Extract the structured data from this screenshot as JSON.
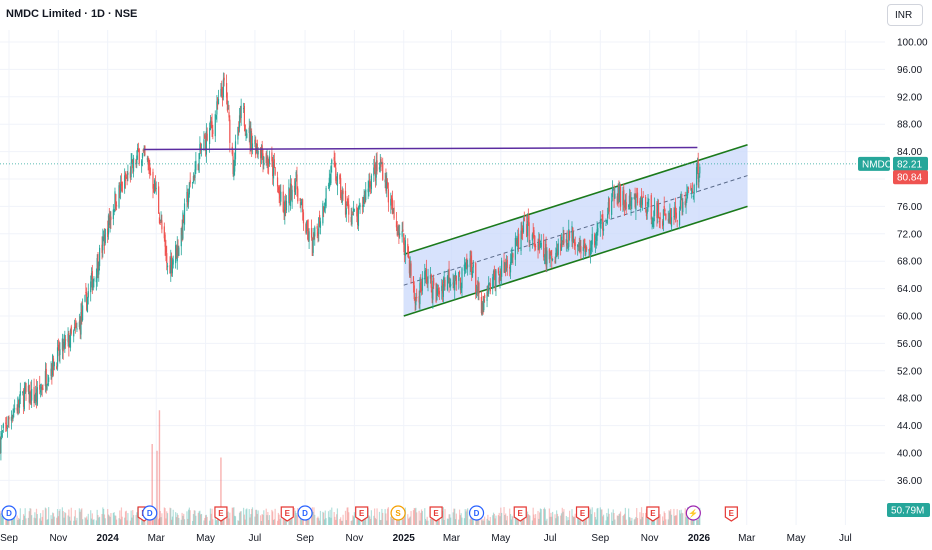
{
  "header": {
    "symbol_title": "NMDC Limited · 1D · NSE",
    "currency": "INR"
  },
  "colors": {
    "up": "#26a69a",
    "down": "#ef5350",
    "channel_line": "#1b7a1b",
    "channel_fill": "#c9d8fb",
    "resistance_line": "#5b2ca0",
    "last_price_line": "#26a69a",
    "volume_badge": "#26a69a"
  },
  "chart_data": {
    "type": "candlestick",
    "y_axis_ticks": [
      36.0,
      40.0,
      44.0,
      48.0,
      52.0,
      56.0,
      60.0,
      64.0,
      68.0,
      72.0,
      76.0,
      80.0,
      84.0,
      88.0,
      92.0,
      96.0,
      100.0
    ],
    "y_axis_tick_labels": [
      "36.00",
      "40.00",
      "44.00",
      "48.00",
      "52.00",
      "56.00",
      "60.00",
      "64.00",
      "68.00",
      "72.00",
      "76.00",
      "80.00",
      "84.00",
      "88.00",
      "92.00",
      "96.00",
      "100.00"
    ],
    "x_axis_labels": [
      {
        "label": "Sep",
        "date": "2023-09-01",
        "year": false
      },
      {
        "label": "Nov",
        "date": "2023-11-01",
        "year": false
      },
      {
        "label": "2024",
        "date": "2024-01-01",
        "year": true
      },
      {
        "label": "Mar",
        "date": "2024-03-01",
        "year": false
      },
      {
        "label": "May",
        "date": "2024-05-01",
        "year": false
      },
      {
        "label": "Jul",
        "date": "2024-07-01",
        "year": false
      },
      {
        "label": "Sep",
        "date": "2024-09-01",
        "year": false
      },
      {
        "label": "Nov",
        "date": "2024-11-01",
        "year": false
      },
      {
        "label": "2025",
        "date": "2025-01-01",
        "year": true
      },
      {
        "label": "Mar",
        "date": "2025-03-01",
        "year": false
      },
      {
        "label": "May",
        "date": "2025-05-01",
        "year": false
      },
      {
        "label": "Jul",
        "date": "2025-07-01",
        "year": false
      },
      {
        "label": "Sep",
        "date": "2025-09-01",
        "year": false
      },
      {
        "label": "Nov",
        "date": "2025-11-01",
        "year": false
      },
      {
        "label": "2026",
        "date": "2026-01-01",
        "year": true
      },
      {
        "label": "Mar",
        "date": "2026-03-01",
        "year": false
      },
      {
        "label": "May",
        "date": "2026-05-01",
        "year": false
      },
      {
        "label": "Jul",
        "date": "2026-07-01",
        "year": false
      }
    ],
    "price_path": [
      [
        "2023-08-20",
        41.5
      ],
      [
        "2023-09-05",
        46
      ],
      [
        "2023-09-20",
        48.5
      ],
      [
        "2023-10-05",
        48
      ],
      [
        "2023-10-20",
        52
      ],
      [
        "2023-11-05",
        55
      ],
      [
        "2023-11-25",
        58
      ],
      [
        "2023-12-10",
        64
      ],
      [
        "2023-12-25",
        70
      ],
      [
        "2024-01-10",
        77
      ],
      [
        "2024-01-25",
        80
      ],
      [
        "2024-02-10",
        84
      ],
      [
        "2024-02-20",
        82
      ],
      [
        "2024-03-01",
        78
      ],
      [
        "2024-03-15",
        67
      ],
      [
        "2024-03-28",
        70
      ],
      [
        "2024-04-10",
        78
      ],
      [
        "2024-04-25",
        84
      ],
      [
        "2024-05-10",
        88
      ],
      [
        "2024-05-25",
        94
      ],
      [
        "2024-06-04",
        82
      ],
      [
        "2024-06-15",
        90
      ],
      [
        "2024-06-25",
        86
      ],
      [
        "2024-07-10",
        84
      ],
      [
        "2024-07-25",
        81
      ],
      [
        "2024-08-05",
        75
      ],
      [
        "2024-08-20",
        80
      ],
      [
        "2024-09-01",
        73
      ],
      [
        "2024-09-10",
        70
      ],
      [
        "2024-09-25",
        77
      ],
      [
        "2024-10-05",
        82
      ],
      [
        "2024-10-20",
        76
      ],
      [
        "2024-11-05",
        74
      ],
      [
        "2024-11-20",
        80
      ],
      [
        "2024-12-05",
        82
      ],
      [
        "2024-12-20",
        74
      ],
      [
        "2025-01-05",
        70
      ],
      [
        "2025-01-15",
        62
      ],
      [
        "2025-01-28",
        66
      ],
      [
        "2025-02-10",
        63
      ],
      [
        "2025-02-25",
        66
      ],
      [
        "2025-03-10",
        65
      ],
      [
        "2025-03-25",
        68
      ],
      [
        "2025-04-07",
        60.5
      ],
      [
        "2025-04-20",
        65
      ],
      [
        "2025-05-05",
        67
      ],
      [
        "2025-05-20",
        70
      ],
      [
        "2025-06-01",
        73
      ],
      [
        "2025-06-15",
        70
      ],
      [
        "2025-06-30",
        68
      ],
      [
        "2025-07-15",
        71
      ],
      [
        "2025-07-30",
        72
      ],
      [
        "2025-08-15",
        69
      ],
      [
        "2025-09-01",
        73
      ],
      [
        "2025-09-20",
        78
      ],
      [
        "2025-10-05",
        76
      ],
      [
        "2025-10-20",
        77
      ],
      [
        "2025-11-05",
        75
      ],
      [
        "2025-11-20",
        74.5
      ],
      [
        "2025-12-05",
        75
      ],
      [
        "2025-12-15",
        77
      ],
      [
        "2025-12-25",
        79
      ],
      [
        "2026-01-02",
        82.21
      ]
    ],
    "channel": {
      "upper_start": [
        "2025-01-01",
        69.0
      ],
      "upper_end": [
        "2026-03-02",
        85.0
      ],
      "lower_start": [
        "2025-01-01",
        60.0
      ],
      "lower_end": [
        "2026-03-02",
        76.0
      ],
      "mid_start": [
        "2025-01-01",
        64.5
      ],
      "mid_end": [
        "2026-03-02",
        80.5
      ]
    },
    "resistance": {
      "start": [
        "2024-02-15",
        84.3
      ],
      "end": [
        "2025-12-30",
        84.6
      ]
    },
    "last_price": {
      "symbol": "NMDC",
      "value": "82.21",
      "level": 82.21
    },
    "prev_close": {
      "value": "80.84",
      "level": 80.84
    },
    "volume": {
      "label": "50.79M"
    },
    "volume_spikes": [
      [
        "2024-03-05",
        0.85
      ],
      [
        "2024-03-02",
        0.55
      ],
      [
        "2024-02-25",
        0.6
      ],
      [
        "2024-05-20",
        0.5
      ]
    ],
    "events": [
      {
        "type": "D",
        "date": "2023-09-01"
      },
      {
        "type": "E",
        "date": "2024-02-15"
      },
      {
        "type": "D",
        "date": "2024-02-22"
      },
      {
        "type": "E",
        "date": "2024-05-20"
      },
      {
        "type": "E",
        "date": "2024-08-10"
      },
      {
        "type": "D",
        "date": "2024-09-01"
      },
      {
        "type": "E",
        "date": "2024-11-10"
      },
      {
        "type": "S",
        "date": "2024-12-25"
      },
      {
        "type": "E",
        "date": "2025-02-10"
      },
      {
        "type": "D",
        "date": "2025-04-01"
      },
      {
        "type": "E",
        "date": "2025-05-25"
      },
      {
        "type": "E",
        "date": "2025-08-10"
      },
      {
        "type": "E",
        "date": "2025-11-05"
      },
      {
        "type": "⚡",
        "date": "2025-12-25"
      },
      {
        "type": "E",
        "date": "2026-02-10"
      }
    ]
  }
}
